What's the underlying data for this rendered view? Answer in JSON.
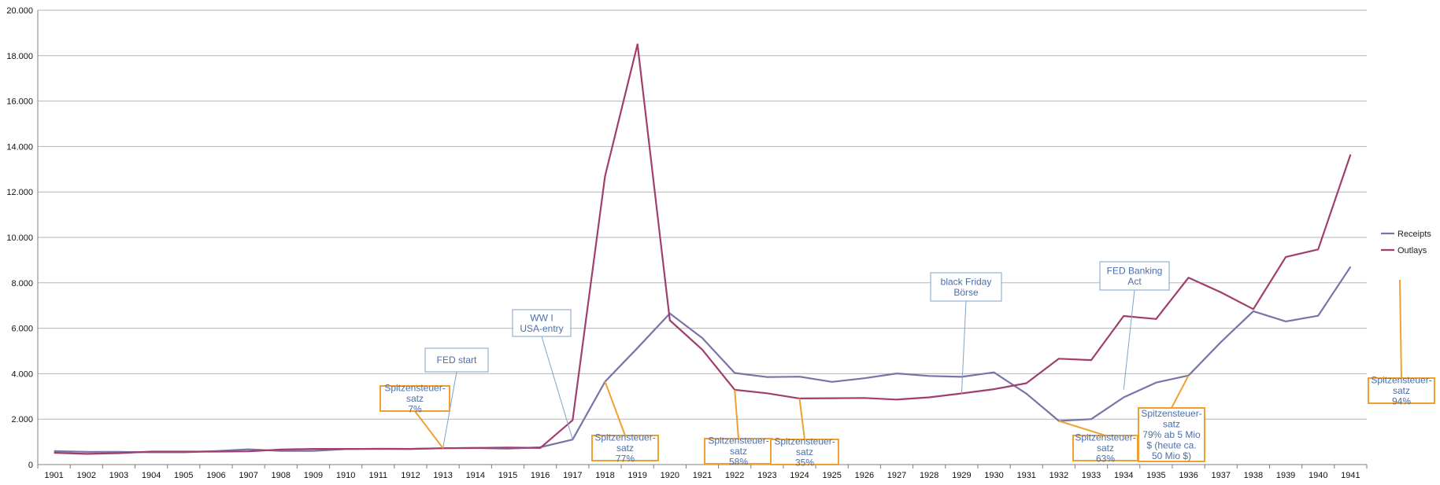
{
  "chart_data": {
    "type": "line",
    "title": "",
    "xlabel": "",
    "ylabel": "",
    "x": [
      "1901",
      "1902",
      "1903",
      "1904",
      "1905",
      "1906",
      "1907",
      "1908",
      "1909",
      "1910",
      "1911",
      "1912",
      "1913",
      "1914",
      "1915",
      "1916",
      "1917",
      "1918",
      "1919",
      "1920",
      "1921",
      "1922",
      "1923",
      "1924",
      "1925",
      "1926",
      "1927",
      "1928",
      "1929",
      "1930",
      "1931",
      "1932",
      "1933",
      "1934",
      "1935",
      "1936",
      "1937",
      "1938",
      "1939",
      "1940",
      "1941"
    ],
    "ylim": [
      0,
      20000
    ],
    "yticks": [
      0,
      2000,
      4000,
      6000,
      8000,
      10000,
      12000,
      14000,
      16000,
      18000,
      20000
    ],
    "ytick_labels": [
      "0",
      "2.000",
      "4.000",
      "6.000",
      "8.000",
      "10.000",
      "12.000",
      "14.000",
      "16.000",
      "18.000",
      "20.000"
    ],
    "grid": true,
    "legend_position": "right",
    "series": [
      {
        "name": "Receipts",
        "color": "#7b73a8",
        "values": [
          590,
          560,
          560,
          540,
          540,
          590,
          670,
          600,
          600,
          680,
          700,
          690,
          720,
          730,
          700,
          760,
          1100,
          3650,
          5130,
          6650,
          5570,
          4030,
          3850,
          3870,
          3640,
          3800,
          4010,
          3900,
          3860,
          4060,
          3120,
          1920,
          2000,
          2960,
          3610,
          3920,
          5390,
          6750,
          6300,
          6550,
          8710
        ]
      },
      {
        "name": "Outlays",
        "color": "#a03e6e",
        "values": [
          520,
          470,
          500,
          570,
          570,
          570,
          580,
          660,
          690,
          690,
          690,
          690,
          720,
          730,
          750,
          730,
          1950,
          12700,
          18500,
          6350,
          5060,
          3290,
          3140,
          2910,
          2920,
          2930,
          2860,
          2960,
          3130,
          3320,
          3580,
          4660,
          4600,
          6540,
          6410,
          8230,
          7580,
          6840,
          9140,
          9470,
          13650
        ]
      }
    ],
    "annotations": [
      {
        "text": "FED start",
        "style": "blue",
        "anchor_year": "1913",
        "anchor_value": 720
      },
      {
        "text": "WW I USA-entry",
        "style": "blue",
        "anchor_year": "1917",
        "anchor_value": 1100
      },
      {
        "text": "black Friday Börse",
        "style": "blue",
        "anchor_year": "1929",
        "anchor_value": 3100
      },
      {
        "text": "FED Banking Act",
        "style": "blue",
        "anchor_year": "1934",
        "anchor_value": 3300
      },
      {
        "text": "Spitzensteuer-satz 7%",
        "style": "orange",
        "anchor_year": "1913",
        "anchor_value": 720
      },
      {
        "text": "Spitzensteuer-satz 77%",
        "style": "orange",
        "anchor_year": "1918",
        "anchor_value": 3650
      },
      {
        "text": "Spitzensteuer-satz 58%",
        "style": "orange",
        "anchor_year": "1922",
        "anchor_value": 3290
      },
      {
        "text": "Spitzensteuer-satz 35%",
        "style": "orange",
        "anchor_year": "1924",
        "anchor_value": 2910
      },
      {
        "text": "Spitzensteuer-satz 63%",
        "style": "orange",
        "anchor_year": "1932",
        "anchor_value": 1920
      },
      {
        "text": "Spitzensteuer-satz 79% ab 5 Mio $ (heute ca. 50 Mio $)",
        "style": "orange",
        "anchor_year": "1936",
        "anchor_value": 3920
      },
      {
        "text": "Spitzensteuer-satz 94%",
        "style": "orange",
        "anchor_year": "1941",
        "anchor_value": 8100
      }
    ]
  },
  "colors": {
    "gridline": "#b5b5b5",
    "axis": "#7f7f7f",
    "annotation_blue_text": "#4a6ea8",
    "annotation_blue_border": "#7fa2cc",
    "annotation_orange_border": "#f0a030",
    "annotation_orange_text": "#4a6ea8"
  }
}
